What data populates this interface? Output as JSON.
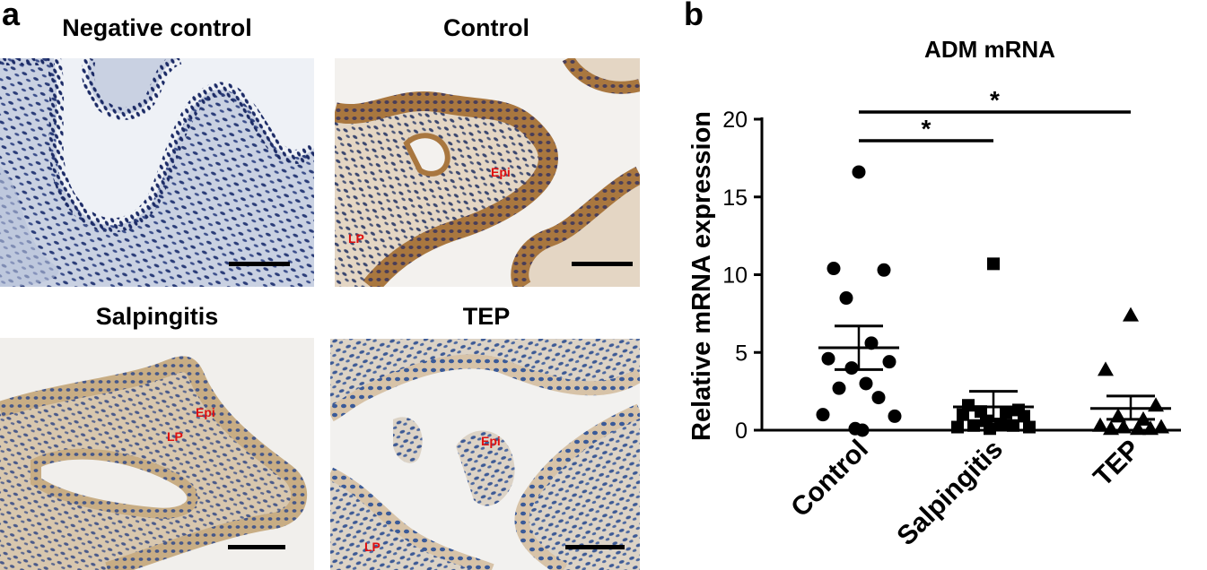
{
  "panel_a": {
    "label": "a",
    "images": [
      {
        "title": "Negative control",
        "stain": "negative",
        "tissue_labels": []
      },
      {
        "title": "Control",
        "stain": "strong",
        "tissue_labels": [
          "Epi",
          "LP"
        ]
      },
      {
        "title": "Salpingitis",
        "stain": "moderate",
        "tissue_labels": [
          "Epi",
          "LP"
        ]
      },
      {
        "title": "TEP",
        "stain": "weak",
        "tissue_labels": [
          "Epi",
          "LP"
        ]
      }
    ]
  },
  "panel_b": {
    "label": "b"
  },
  "chart_data": {
    "type": "scatter",
    "title": "ADM mRNA",
    "xlabel": "",
    "ylabel": "Relative mRNA expression",
    "categories": [
      "Control",
      "Salpingitis",
      "TEP"
    ],
    "ylim": [
      0,
      20
    ],
    "yticks": [
      0,
      5,
      10,
      15,
      20
    ],
    "series": [
      {
        "category": "Control",
        "marker": "circle",
        "values": [
          16.6,
          10.4,
          10.3,
          8.5,
          5.6,
          4.6,
          4.4,
          4.0,
          3.0,
          2.7,
          2.1,
          1.0,
          0.9,
          0.1,
          0.0
        ],
        "mean": 5.3,
        "sem_upper": 6.7,
        "sem_lower": 3.9
      },
      {
        "category": "Salpingitis",
        "marker": "square",
        "values": [
          10.7,
          1.6,
          1.3,
          1.2,
          1.1,
          1.0,
          0.9,
          0.6,
          0.4,
          0.3,
          0.3,
          0.2,
          0.2,
          0.1
        ],
        "mean": 1.5,
        "sem_upper": 2.5,
        "sem_lower": 0.6
      },
      {
        "category": "TEP",
        "marker": "triangle",
        "values": [
          7.4,
          3.9,
          1.6,
          0.9,
          0.7,
          0.3,
          0.2,
          0.2,
          0.1,
          0.1,
          0.1
        ],
        "mean": 1.4,
        "sem_upper": 2.2,
        "sem_lower": 0.7
      }
    ],
    "significance": [
      {
        "from": "Control",
        "to": "Salpingitis",
        "label": "*"
      },
      {
        "from": "Control",
        "to": "TEP",
        "label": "*"
      }
    ],
    "colors": {
      "markers": "#000000",
      "axis": "#000000"
    }
  }
}
